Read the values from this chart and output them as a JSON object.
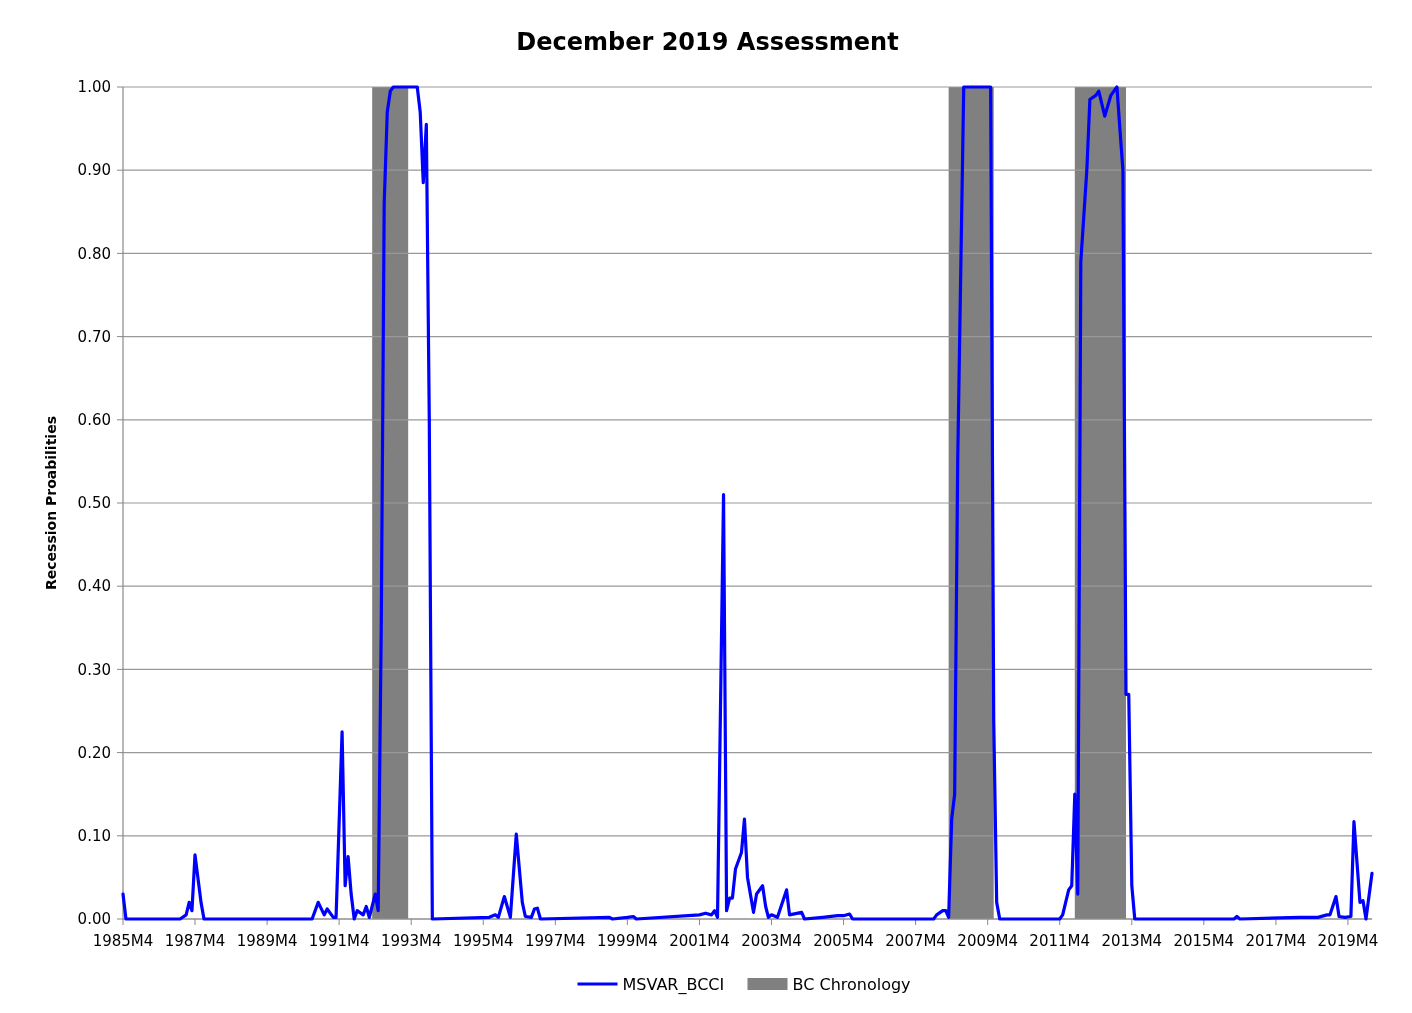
{
  "chart_data": {
    "type": "line",
    "title": "December 2019 Assessment",
    "ylabel": "Recession Proabilities",
    "xlim": [
      "1985-04",
      "2019-12"
    ],
    "xticks": [
      {
        "value": "1985-04",
        "label": "1985M4"
      },
      {
        "value": "1987-04",
        "label": "1987M4"
      },
      {
        "value": "1989-04",
        "label": "1989M4"
      },
      {
        "value": "1991-04",
        "label": "1991M4"
      },
      {
        "value": "1993-04",
        "label": "1993M4"
      },
      {
        "value": "1995-04",
        "label": "1995M4"
      },
      {
        "value": "1997-04",
        "label": "1997M4"
      },
      {
        "value": "1999-04",
        "label": "1999M4"
      },
      {
        "value": "2001-04",
        "label": "2001M4"
      },
      {
        "value": "2003-04",
        "label": "2003M4"
      },
      {
        "value": "2005-04",
        "label": "2005M4"
      },
      {
        "value": "2007-04",
        "label": "2007M4"
      },
      {
        "value": "2009-04",
        "label": "2009M4"
      },
      {
        "value": "2011-04",
        "label": "2011M4"
      },
      {
        "value": "2013-04",
        "label": "2013M4"
      },
      {
        "value": "2015-04",
        "label": "2015M4"
      },
      {
        "value": "2017-04",
        "label": "2017M4"
      },
      {
        "value": "2019-04",
        "label": "2019M4"
      }
    ],
    "ylim": [
      0,
      1
    ],
    "yticks": [
      {
        "value": 0,
        "label": "0.00"
      },
      {
        "value": 0.1,
        "label": "0.10"
      },
      {
        "value": 0.2,
        "label": "0.20"
      },
      {
        "value": 0.3,
        "label": "0.30"
      },
      {
        "value": 0.4,
        "label": "0.40"
      },
      {
        "value": 0.5,
        "label": "0.50"
      },
      {
        "value": 0.6,
        "label": "0.60"
      },
      {
        "value": 0.7,
        "label": "0.70"
      },
      {
        "value": 0.8,
        "label": "0.80"
      },
      {
        "value": 0.9,
        "label": "0.90"
      },
      {
        "value": 1,
        "label": "1.00"
      }
    ],
    "grid": "y",
    "legend": "bottom",
    "line_style": "solid",
    "marker": "none",
    "bands": [
      {
        "axis": "x",
        "from": "1992-03",
        "to": "1993-03",
        "label": "BC Chronology",
        "color": "#808080"
      },
      {
        "axis": "x",
        "from": "2008-03",
        "to": "2009-06",
        "color": "#808080"
      },
      {
        "axis": "x",
        "from": "2011-09",
        "to": "2013-02",
        "color": "#808080"
      }
    ],
    "series": [
      {
        "name": "MSVAR_BCCI",
        "color": "#0000ff",
        "x": [
          "1985-04",
          "1985-05",
          "1986-11",
          "1987-01",
          "1987-02",
          "1987-03",
          "1987-04",
          "1987-06",
          "1987-07",
          "1990-07",
          "1990-09",
          "1990-11",
          "1990-12",
          "1991-02",
          "1991-03",
          "1991-05",
          "1991-06",
          "1991-07",
          "1991-08",
          "1991-09",
          "1991-10",
          "1991-12",
          "1992-01",
          "1992-02",
          "1992-04",
          "1992-05",
          "1992-06",
          "1992-07",
          "1992-08",
          "1992-09",
          "1992-10",
          "1993-06",
          "1993-07",
          "1993-08",
          "1993-09",
          "1993-10",
          "1993-11",
          "1995-06",
          "1995-08",
          "1995-09",
          "1995-11",
          "1996-01",
          "1996-03",
          "1996-05",
          "1996-06",
          "1996-08",
          "1996-09",
          "1996-10",
          "1996-11",
          "1998-10",
          "1998-11",
          "1999-04",
          "1999-06",
          "1999-07",
          "2001-04",
          "2001-06",
          "2001-08",
          "2001-09",
          "2001-10",
          "2001-12",
          "2002-01",
          "2002-02",
          "2002-03",
          "2002-04",
          "2002-06",
          "2002-07",
          "2002-08",
          "2002-10",
          "2002-11",
          "2003-01",
          "2003-02",
          "2003-03",
          "2003-04",
          "2003-06",
          "2003-09",
          "2003-10",
          "2004-02",
          "2004-03",
          "2004-09",
          "2005-02",
          "2005-04",
          "2005-06",
          "2005-07",
          "2007-10",
          "2007-11",
          "2008-01",
          "2008-02",
          "2008-03",
          "2008-04",
          "2008-05",
          "2008-06",
          "2008-08",
          "2009-05",
          "2009-06",
          "2009-07",
          "2009-08",
          "2011-04",
          "2011-05",
          "2011-07",
          "2011-08",
          "2011-09",
          "2011-10",
          "2011-11",
          "2012-01",
          "2012-02",
          "2012-04",
          "2012-05",
          "2012-07",
          "2012-09",
          "2012-11",
          "2012-12",
          "2013-01",
          "2013-02",
          "2013-03",
          "2013-04",
          "2013-05",
          "2016-02",
          "2016-03",
          "2016-04",
          "2017-12",
          "2018-04",
          "2018-06",
          "2018-09",
          "2018-10",
          "2018-12",
          "2019-01",
          "2019-03",
          "2019-05",
          "2019-06",
          "2019-08",
          "2019-09",
          "2019-10",
          "2019-12"
        ],
        "values": [
          0.03,
          0,
          0,
          0.005,
          0.02,
          0.01,
          0.077,
          0.02,
          0,
          0,
          0.02,
          0.005,
          0.012,
          0.002,
          0.002,
          0.225,
          0.04,
          0.075,
          0.03,
          0,
          0.01,
          0.005,
          0.015,
          0.002,
          0.03,
          0.01,
          0.35,
          0.86,
          0.97,
          0.995,
          1,
          1,
          0.97,
          0.885,
          0.955,
          0.6,
          0,
          0.002,
          0.005,
          0.002,
          0.027,
          0.002,
          0.102,
          0.02,
          0.003,
          0.002,
          0.012,
          0.013,
          0,
          0.002,
          0,
          0.002,
          0.003,
          0,
          0.005,
          0.007,
          0.005,
          0.01,
          0.002,
          0.51,
          0.01,
          0.025,
          0.025,
          0.06,
          0.08,
          0.12,
          0.05,
          0.008,
          0.03,
          0.04,
          0.015,
          0.002,
          0.005,
          0.002,
          0.035,
          0.005,
          0.008,
          0,
          0.002,
          0.004,
          0.004,
          0.006,
          0,
          0,
          0.005,
          0.01,
          0.01,
          0.002,
          0.12,
          0.15,
          0.55,
          1,
          1,
          0.24,
          0.02,
          0,
          0,
          0.005,
          0.035,
          0.04,
          0.15,
          0.03,
          0.79,
          0.9,
          0.985,
          0.99,
          0.995,
          0.965,
          0.99,
          1,
          0.95,
          0.9,
          0.27,
          0.27,
          0.04,
          0,
          0,
          0.003,
          0,
          0.002,
          0.002,
          0.002,
          0.005,
          0.005,
          0.027,
          0.003,
          0.002,
          0.003,
          0.117,
          0.02,
          0.022,
          0,
          0.055
        ]
      }
    ]
  }
}
